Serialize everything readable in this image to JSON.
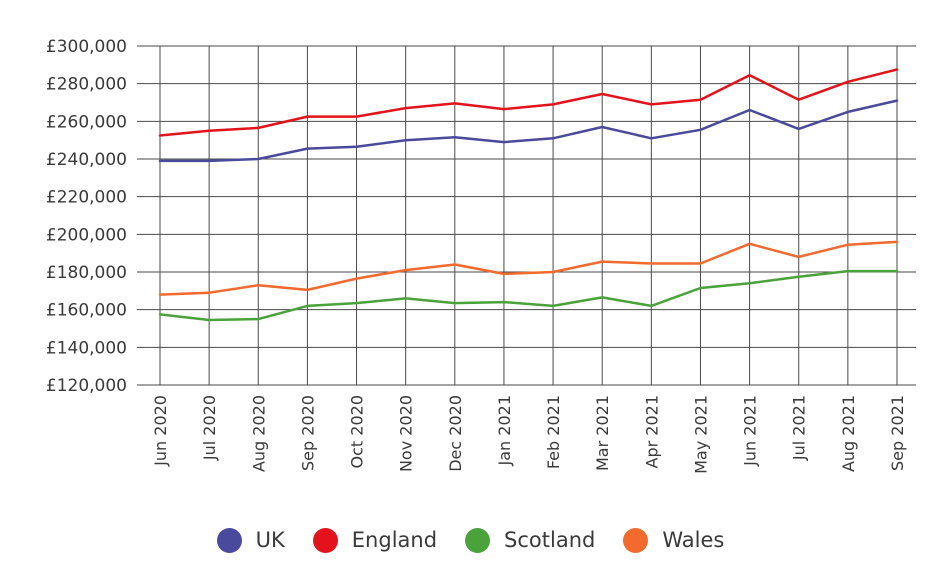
{
  "chart_data": {
    "type": "line",
    "title": "",
    "xlabel": "",
    "ylabel": "",
    "categories": [
      "Jun 2020",
      "Jul 2020",
      "Aug 2020",
      "Sep 2020",
      "Oct 2020",
      "Nov 2020",
      "Dec 2020",
      "Jan 2021",
      "Feb 2021",
      "Mar 2021",
      "Apr 2021",
      "May 2021",
      "Jun 2021",
      "Jul 2021",
      "Aug 2021",
      "Sep 2021"
    ],
    "ylim": [
      120000,
      300000
    ],
    "yticks": [
      120000,
      140000,
      160000,
      180000,
      200000,
      220000,
      240000,
      260000,
      280000,
      300000
    ],
    "ytick_labels": [
      "£120,000",
      "£140,000",
      "£160,000",
      "£180,000",
      "£200,000",
      "£220,000",
      "£240,000",
      "£260,000",
      "£280,000",
      "£300,000"
    ],
    "grid": true,
    "legend_position": "bottom",
    "series": [
      {
        "name": "UK",
        "color": "#4a4a9c",
        "values": [
          239000,
          239000,
          240000,
          245500,
          246500,
          250000,
          251500,
          249000,
          251000,
          257000,
          251000,
          255500,
          266000,
          256000,
          265000,
          271000
        ]
      },
      {
        "name": "England",
        "color": "#e3131b",
        "values": [
          252500,
          255000,
          256500,
          262500,
          262500,
          267000,
          269500,
          266500,
          269000,
          274500,
          269000,
          271500,
          284500,
          271500,
          281000,
          287500
        ]
      },
      {
        "name": "Scotland",
        "color": "#4aa23a",
        "values": [
          157500,
          154500,
          155000,
          162000,
          163500,
          166000,
          163500,
          164000,
          162000,
          166500,
          162000,
          171500,
          174000,
          177500,
          180500,
          180500
        ]
      },
      {
        "name": "Wales",
        "color": "#f26a2e",
        "values": [
          168000,
          169000,
          173000,
          170500,
          176500,
          181000,
          184000,
          179000,
          180000,
          185500,
          184500,
          184500,
          195000,
          188000,
          194500,
          196000
        ]
      }
    ]
  }
}
